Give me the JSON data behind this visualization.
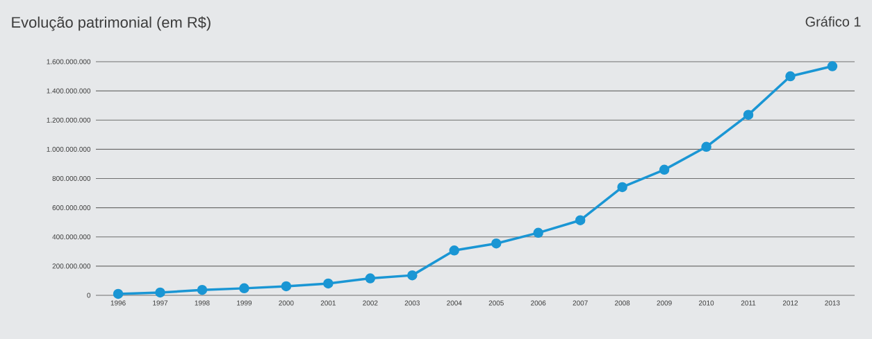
{
  "chart_data": {
    "type": "line",
    "title": "Evolução patrimonial (em R$)",
    "annotations": [
      "Gráfico 1"
    ],
    "categories": [
      "1996",
      "1997",
      "1998",
      "1999",
      "2000",
      "2001",
      "2002",
      "2003",
      "2004",
      "2005",
      "2006",
      "2007",
      "2008",
      "2009",
      "2010",
      "2011",
      "2012",
      "2013"
    ],
    "series": [
      {
        "color": "#1a96d4",
        "values": [
          10000000,
          19000000,
          37000000,
          48000000,
          62000000,
          81000000,
          116000000,
          137000000,
          307000000,
          355000000,
          428000000,
          514000000,
          741000000,
          860000000,
          1017000000,
          1236000000,
          1500000000,
          1569000000
        ]
      }
    ],
    "ylim": [
      0,
      1600000000
    ],
    "yticks": [
      0,
      {
        "value": 200000000,
        "label": "200.000.000"
      },
      {
        "value": 400000000,
        "label": "400.000.000"
      },
      {
        "value": 600000000,
        "label": "600.000.000"
      },
      {
        "value": 800000000,
        "label": "800.000.000"
      },
      {
        "value": 1000000000,
        "label": "1.000.000.000"
      },
      {
        "value": 1200000000,
        "label": "1.200.000.000"
      },
      {
        "value": 1400000000,
        "label": "1.400.000.000"
      },
      {
        "value": 1600000000,
        "label": "1.600.000.000"
      }
    ],
    "grid": "y",
    "marker": "circle",
    "line_style": "solid"
  }
}
